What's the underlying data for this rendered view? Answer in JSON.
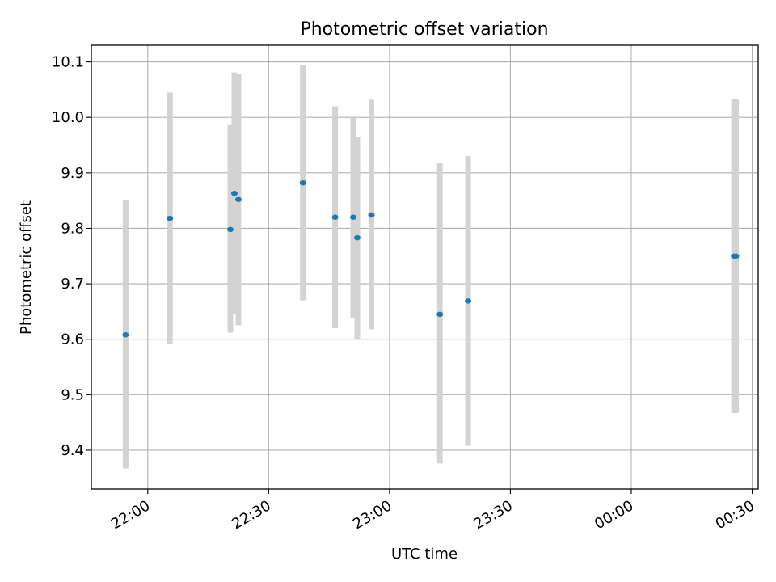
{
  "chart_data": {
    "type": "scatter",
    "title": "Photometric offset variation",
    "xlabel": "UTC time",
    "ylabel": "Photometric offset",
    "x_axis": {
      "kind": "time",
      "range": [
        "21:46:00",
        "00:31:30"
      ],
      "ticks": [
        "22:00",
        "22:30",
        "23:00",
        "23:30",
        "00:00",
        "00:30"
      ]
    },
    "y_axis": {
      "range": [
        9.33,
        10.13
      ],
      "ticks": [
        "9.4",
        "9.5",
        "9.6",
        "9.7",
        "9.8",
        "9.9",
        "10.0",
        "10.1"
      ]
    },
    "grid": true,
    "marker_color": "#1f77b4",
    "errorbar_color": "#d3d3d3",
    "points": [
      {
        "time": "21:54:30",
        "offset": 9.608,
        "err_low": 9.367,
        "err_high": 9.851
      },
      {
        "time": "22:05:30",
        "offset": 9.818,
        "err_low": 9.592,
        "err_high": 10.045
      },
      {
        "time": "22:20:30",
        "offset": 9.798,
        "err_low": 9.612,
        "err_high": 9.986
      },
      {
        "time": "22:21:30",
        "offset": 9.863,
        "err_low": 9.645,
        "err_high": 10.081
      },
      {
        "time": "22:22:30",
        "offset": 9.852,
        "err_low": 9.625,
        "err_high": 10.079
      },
      {
        "time": "22:38:30",
        "offset": 9.882,
        "err_low": 9.67,
        "err_high": 10.095
      },
      {
        "time": "22:46:30",
        "offset": 9.82,
        "err_low": 9.62,
        "err_high": 10.02
      },
      {
        "time": "22:51:00",
        "offset": 9.82,
        "err_low": 9.639,
        "err_high": 10.0
      },
      {
        "time": "22:52:00",
        "offset": 9.783,
        "err_low": 9.601,
        "err_high": 9.965
      },
      {
        "time": "22:55:30",
        "offset": 9.824,
        "err_low": 9.618,
        "err_high": 10.032
      },
      {
        "time": "23:12:30",
        "offset": 9.645,
        "err_low": 9.376,
        "err_high": 9.917
      },
      {
        "time": "23:19:30",
        "offset": 9.669,
        "err_low": 9.408,
        "err_high": 9.93
      },
      {
        "time": "00:25:30",
        "offset": 9.75,
        "err_low": 9.467,
        "err_high": 10.033
      },
      {
        "time": "00:26:00",
        "offset": 9.75,
        "err_low": 9.467,
        "err_high": 10.033
      }
    ]
  }
}
